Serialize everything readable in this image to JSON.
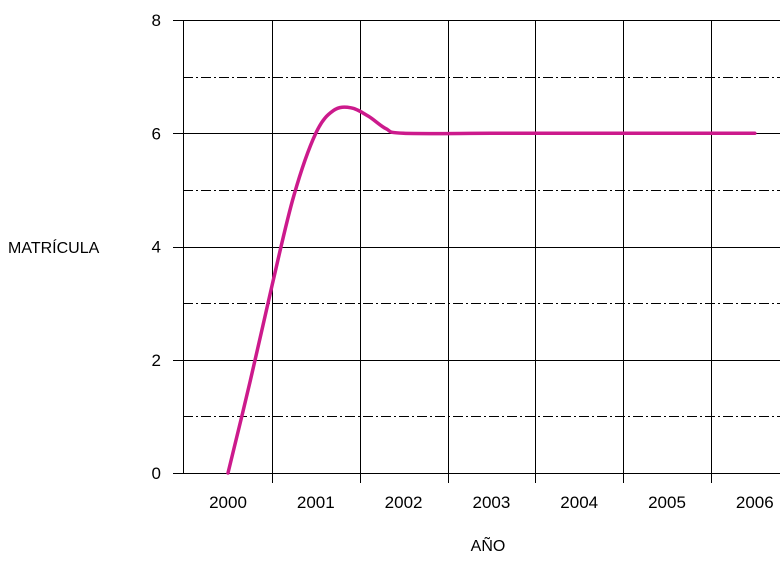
{
  "chart_data": {
    "type": "line",
    "title": "",
    "xlabel": "AÑO",
    "ylabel": "MATRÍCULA",
    "x_categories": [
      "2000",
      "2001",
      "2002",
      "2003",
      "2004",
      "2005",
      "2006"
    ],
    "yticks": [
      0,
      2,
      4,
      6,
      8
    ],
    "ylim": [
      0,
      8
    ],
    "grid": "on (solid major lines, dash-dot minor lines at odd values)",
    "legend": "none",
    "series": [
      {
        "color": "#cc1a8c",
        "points": [
          {
            "x": 2000.0,
            "y": 0.0
          },
          {
            "x": 2000.25,
            "y": 1.6
          },
          {
            "x": 2000.5,
            "y": 3.3
          },
          {
            "x": 2000.75,
            "y": 4.9
          },
          {
            "x": 2001.0,
            "y": 6.0
          },
          {
            "x": 2001.2,
            "y": 6.4
          },
          {
            "x": 2001.4,
            "y": 6.45
          },
          {
            "x": 2001.6,
            "y": 6.3
          },
          {
            "x": 2001.8,
            "y": 6.08
          },
          {
            "x": 2002.0,
            "y": 6.0
          },
          {
            "x": 2003.0,
            "y": 6.0
          },
          {
            "x": 2004.0,
            "y": 6.0
          },
          {
            "x": 2005.0,
            "y": 6.0
          },
          {
            "x": 2006.0,
            "y": 6.0
          }
        ]
      }
    ]
  }
}
